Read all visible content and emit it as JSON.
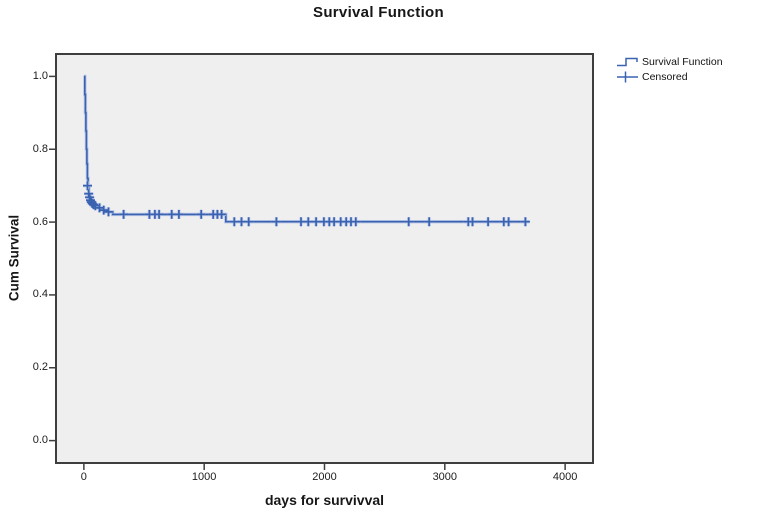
{
  "chart_data": {
    "type": "line",
    "subtype": "kaplan-meier-step",
    "title": "Survival Function",
    "xlabel": "days for survivval",
    "ylabel": "Cum Survival",
    "xlim": [
      -215,
      4215
    ],
    "ylim": [
      -0.056,
      1.056
    ],
    "x_ticks": [
      0,
      1000,
      2000,
      3000,
      4000
    ],
    "y_ticks": [
      0.0,
      0.2,
      0.4,
      0.6,
      0.8,
      1.0
    ],
    "grid": false,
    "legend_position": "outside-top-right",
    "series": [
      {
        "name": "Survival Function",
        "type": "step",
        "points": [
          [
            0,
            1.0
          ],
          [
            8,
            0.95
          ],
          [
            13,
            0.9
          ],
          [
            17,
            0.85
          ],
          [
            21,
            0.8
          ],
          [
            25,
            0.76
          ],
          [
            29,
            0.72
          ],
          [
            35,
            0.695
          ],
          [
            42,
            0.675
          ],
          [
            52,
            0.663
          ],
          [
            65,
            0.653
          ],
          [
            85,
            0.647
          ],
          [
            130,
            0.639
          ],
          [
            165,
            0.633
          ],
          [
            200,
            0.628
          ],
          [
            240,
            0.621
          ],
          [
            1180,
            0.601
          ],
          [
            3700,
            0.601
          ]
        ]
      },
      {
        "name": "Censored",
        "type": "scatter-plus",
        "points": [
          [
            30,
            0.7
          ],
          [
            40,
            0.678
          ],
          [
            48,
            0.668
          ],
          [
            55,
            0.66
          ],
          [
            62,
            0.655
          ],
          [
            70,
            0.651
          ],
          [
            80,
            0.648
          ],
          [
            95,
            0.645
          ],
          [
            130,
            0.639
          ],
          [
            165,
            0.633
          ],
          [
            205,
            0.628
          ],
          [
            330,
            0.621
          ],
          [
            545,
            0.621
          ],
          [
            590,
            0.621
          ],
          [
            625,
            0.621
          ],
          [
            730,
            0.621
          ],
          [
            790,
            0.621
          ],
          [
            975,
            0.621
          ],
          [
            1075,
            0.621
          ],
          [
            1110,
            0.621
          ],
          [
            1145,
            0.621
          ],
          [
            1250,
            0.601
          ],
          [
            1310,
            0.601
          ],
          [
            1370,
            0.601
          ],
          [
            1600,
            0.601
          ],
          [
            1805,
            0.601
          ],
          [
            1865,
            0.601
          ],
          [
            1930,
            0.601
          ],
          [
            1995,
            0.601
          ],
          [
            2040,
            0.601
          ],
          [
            2080,
            0.601
          ],
          [
            2135,
            0.601
          ],
          [
            2180,
            0.601
          ],
          [
            2220,
            0.601
          ],
          [
            2260,
            0.601
          ],
          [
            2700,
            0.601
          ],
          [
            2870,
            0.601
          ],
          [
            3195,
            0.601
          ],
          [
            3230,
            0.601
          ],
          [
            3360,
            0.601
          ],
          [
            3490,
            0.601
          ],
          [
            3530,
            0.601
          ],
          [
            3670,
            0.601
          ]
        ]
      }
    ],
    "colors": {
      "series_blue": "#3a62b0",
      "halo_blue": "#b9c8e8",
      "plot_bg": "#f0eff0",
      "frame": "#3e3e3e",
      "text": "#111111"
    }
  }
}
